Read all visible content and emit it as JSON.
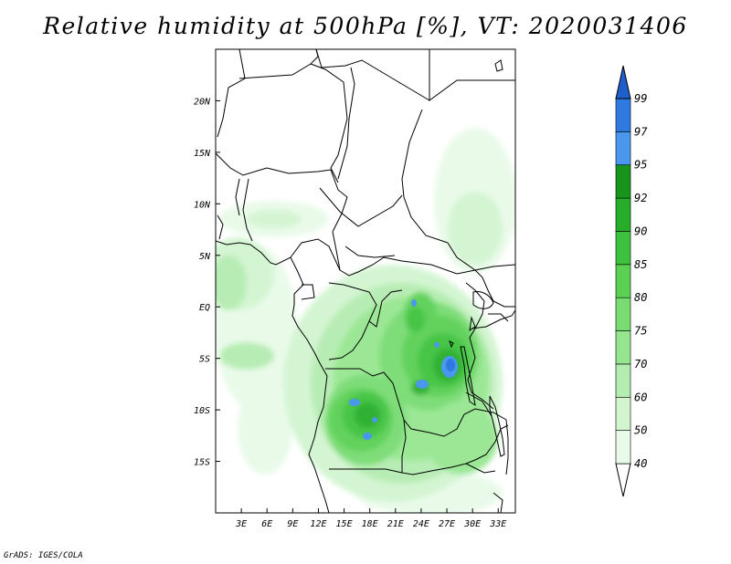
{
  "title": "Relative humidity at 500hPa [%], VT: 2020031406",
  "credit": "GrADS: IGES/COLA",
  "map": {
    "lon_range": [
      0,
      35
    ],
    "lat_range": [
      -20,
      25
    ],
    "lon_ticks": [
      {
        "value": 3,
        "label": "3E"
      },
      {
        "value": 6,
        "label": "6E"
      },
      {
        "value": 9,
        "label": "9E"
      },
      {
        "value": 12,
        "label": "12E"
      },
      {
        "value": 15,
        "label": "15E"
      },
      {
        "value": 18,
        "label": "18E"
      },
      {
        "value": 21,
        "label": "21E"
      },
      {
        "value": 24,
        "label": "24E"
      },
      {
        "value": 27,
        "label": "27E"
      },
      {
        "value": 30,
        "label": "30E"
      },
      {
        "value": 33,
        "label": "33E"
      }
    ],
    "lat_ticks": [
      {
        "value": 20,
        "label": "20N"
      },
      {
        "value": 15,
        "label": "15N"
      },
      {
        "value": 10,
        "label": "10N"
      },
      {
        "value": 5,
        "label": "5N"
      },
      {
        "value": 0,
        "label": "EQ"
      },
      {
        "value": -5,
        "label": "5S"
      },
      {
        "value": -10,
        "label": "10S"
      },
      {
        "value": -15,
        "label": "15S"
      }
    ]
  },
  "colorbar": {
    "bins": [
      {
        "color": "#ffffff"
      },
      {
        "color": "#e8fae8",
        "label": "40"
      },
      {
        "color": "#d2f5d0",
        "label": "50"
      },
      {
        "color": "#b4edb0",
        "label": "60"
      },
      {
        "color": "#96e690",
        "label": "70"
      },
      {
        "color": "#78dc72",
        "label": "75"
      },
      {
        "color": "#5ad055",
        "label": "80"
      },
      {
        "color": "#3cc23c",
        "label": "85"
      },
      {
        "color": "#27ad2a",
        "label": "90"
      },
      {
        "color": "#17941c",
        "label": "92"
      },
      {
        "color": "#4a97ee",
        "label": "95"
      },
      {
        "color": "#2e7ae0",
        "label": "97"
      },
      {
        "color": "#1e5fcc",
        "label": "99"
      }
    ]
  }
}
